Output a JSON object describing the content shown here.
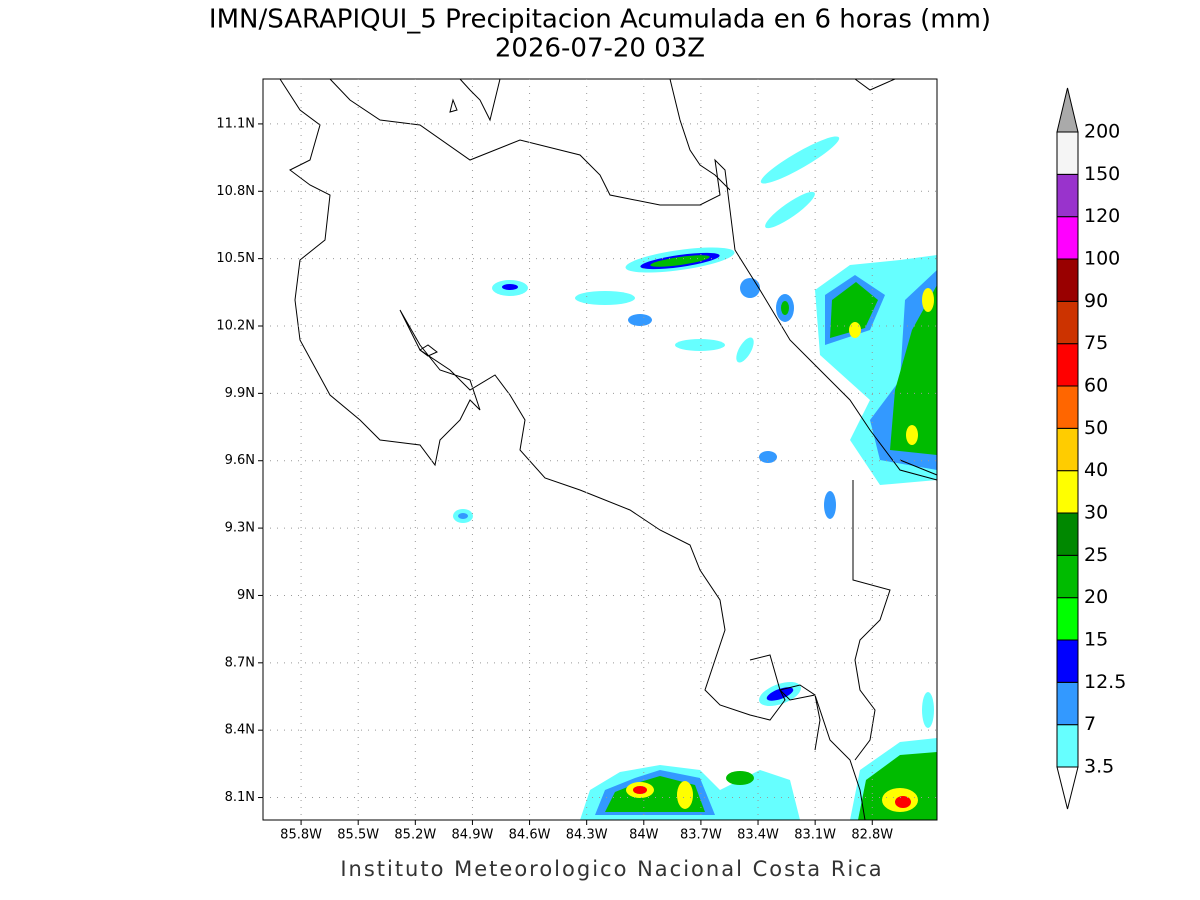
{
  "map": {
    "title": "IMN/SARAPIQUI_5 Precipitacion Acumulada en 6 horas (mm)",
    "subtitle": "2026-07-20 03Z",
    "footer": "Instituto Meteorologico Nacional Costa Rica",
    "lonlim": [
      -86.0,
      -82.46
    ],
    "latlim": [
      8.0,
      11.3
    ],
    "lon_ticks": [
      {
        "value": -85.8,
        "label": "85.8W"
      },
      {
        "value": -85.5,
        "label": "85.5W"
      },
      {
        "value": -85.2,
        "label": "85.2W"
      },
      {
        "value": -84.9,
        "label": "84.9W"
      },
      {
        "value": -84.6,
        "label": "84.6W"
      },
      {
        "value": -84.3,
        "label": "84.3W"
      },
      {
        "value": -84.0,
        "label": "84W"
      },
      {
        "value": -83.7,
        "label": "83.7W"
      },
      {
        "value": -83.4,
        "label": "83.4W"
      },
      {
        "value": -83.1,
        "label": "83.1W"
      },
      {
        "value": -82.8,
        "label": "82.8W"
      }
    ],
    "lat_ticks": [
      {
        "value": 8.1,
        "label": "8.1N"
      },
      {
        "value": 8.4,
        "label": "8.4N"
      },
      {
        "value": 8.7,
        "label": "8.7N"
      },
      {
        "value": 9.0,
        "label": "9N"
      },
      {
        "value": 9.3,
        "label": "9.3N"
      },
      {
        "value": 9.6,
        "label": "9.6N"
      },
      {
        "value": 9.9,
        "label": "9.9N"
      },
      {
        "value": 10.2,
        "label": "10.2N"
      },
      {
        "value": 10.5,
        "label": "10.5N"
      },
      {
        "value": 10.8,
        "label": "10.8N"
      },
      {
        "value": 11.1,
        "label": "11.1N"
      }
    ],
    "grid": true,
    "colorbar": {
      "levels": [
        3.5,
        7,
        12.5,
        15,
        20,
        25,
        30,
        40,
        50,
        60,
        75,
        90,
        100,
        120,
        150,
        200
      ],
      "colors": [
        "#66ffff",
        "#3399ff",
        "#0000ff",
        "#00ff00",
        "#00bb00",
        "#008800",
        "#ffff00",
        "#ffcc00",
        "#ff6600",
        "#ff0000",
        "#cc3300",
        "#990000",
        "#ff00ff",
        "#9933cc",
        "#f5f5f5"
      ],
      "over_color": "#aaaaaa",
      "under_color": "#ffffff"
    }
  }
}
